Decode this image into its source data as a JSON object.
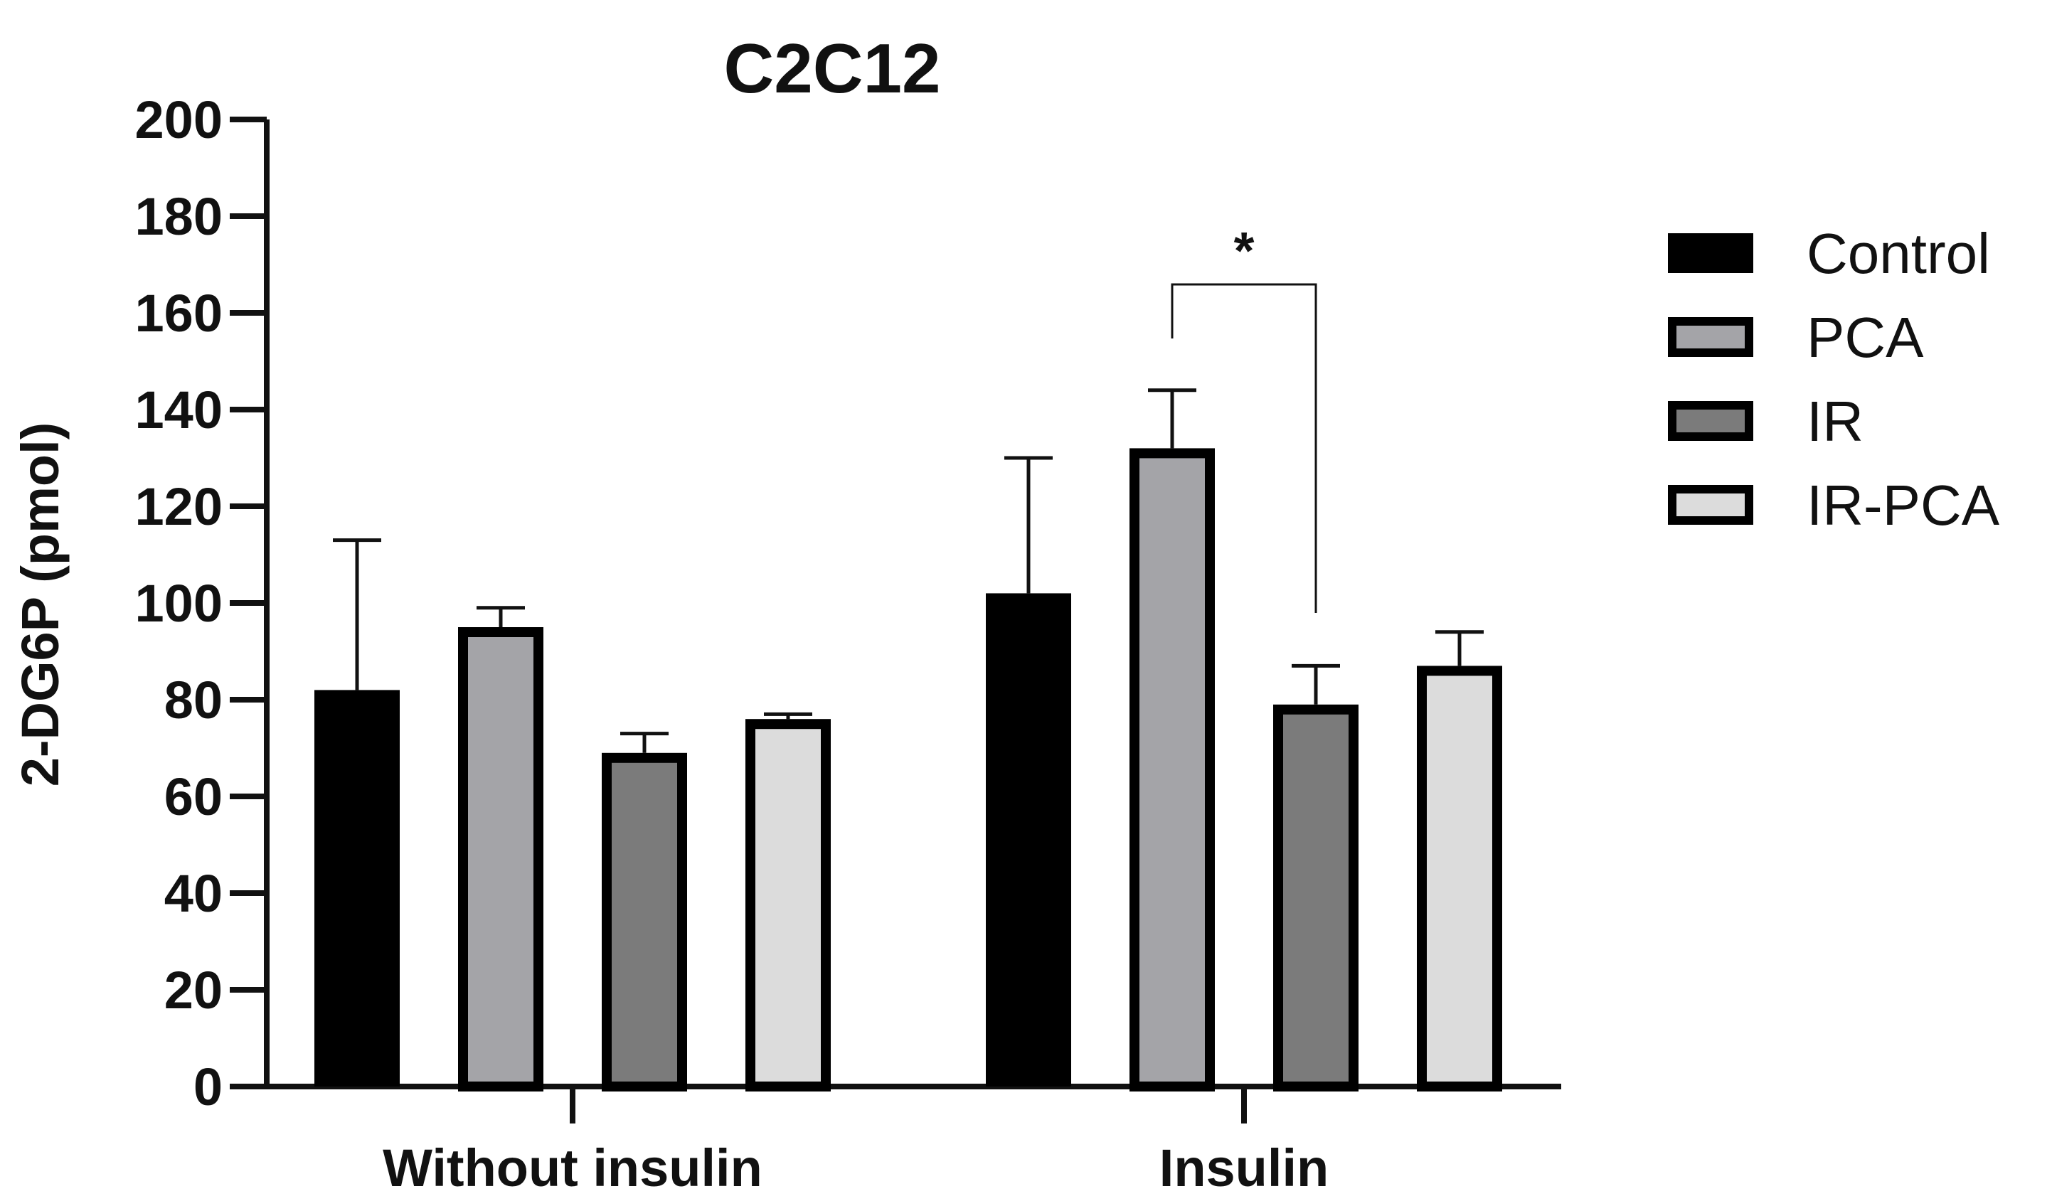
{
  "chart_data": {
    "type": "bar",
    "title": "C2C12",
    "xlabel": "",
    "ylabel": "2-DG6P (pmol)",
    "ylim": [
      0,
      200
    ],
    "yticks": [
      0,
      20,
      40,
      60,
      80,
      100,
      120,
      140,
      160,
      180,
      200
    ],
    "categories": [
      "Without insulin",
      "Insulin"
    ],
    "series": [
      {
        "name": "Control",
        "color": "#000000",
        "values": [
          82,
          102
        ],
        "errors": [
          31,
          28
        ]
      },
      {
        "name": "PCA",
        "color": "#a4a4a8",
        "values": [
          95,
          132
        ],
        "errors": [
          4,
          12
        ]
      },
      {
        "name": "IR",
        "color": "#7b7b7b",
        "values": [
          69,
          79
        ],
        "errors": [
          4,
          8
        ]
      },
      {
        "name": "IR-PCA",
        "color": "#dcdcdc",
        "values": [
          76,
          87
        ],
        "errors": [
          1,
          7
        ]
      }
    ],
    "annotations": [
      {
        "text": "*",
        "category": "Insulin",
        "between": [
          "PCA",
          "IR"
        ]
      }
    ],
    "legend_position": "right"
  }
}
